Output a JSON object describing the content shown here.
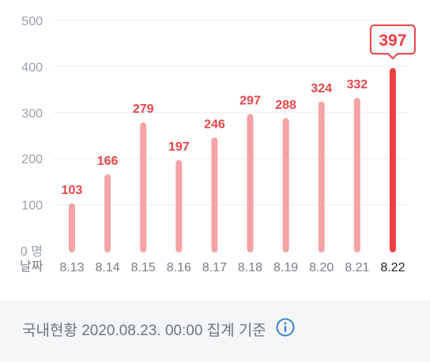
{
  "chart_data": {
    "type": "bar",
    "categories": [
      "8.13",
      "8.14",
      "8.15",
      "8.16",
      "8.17",
      "8.18",
      "8.19",
      "8.20",
      "8.21",
      "8.22"
    ],
    "values": [
      103,
      166,
      279,
      197,
      246,
      297,
      288,
      324,
      332,
      397
    ],
    "ylim": [
      0,
      500
    ],
    "yticks": [
      0,
      100,
      200,
      300,
      400,
      500
    ],
    "ytick_labels": [
      "0 명",
      "100",
      "200",
      "300",
      "400",
      "500"
    ],
    "xlabel": "날짜",
    "highlight_index": 9,
    "colors": {
      "bar": "#f5a3a6",
      "bar_highlight": "#ee3f44",
      "value_label": "#e7464b",
      "grid": "#e9ebee",
      "tick_label": "#9aa0a8",
      "category_label": "#787d86",
      "category_label_highlight": "#222222"
    },
    "grid": true
  },
  "footer": {
    "text": "국내현황 2020.08.23. 00:00 집계 기준",
    "icon": "info-icon",
    "icon_color": "#3d82c4"
  }
}
